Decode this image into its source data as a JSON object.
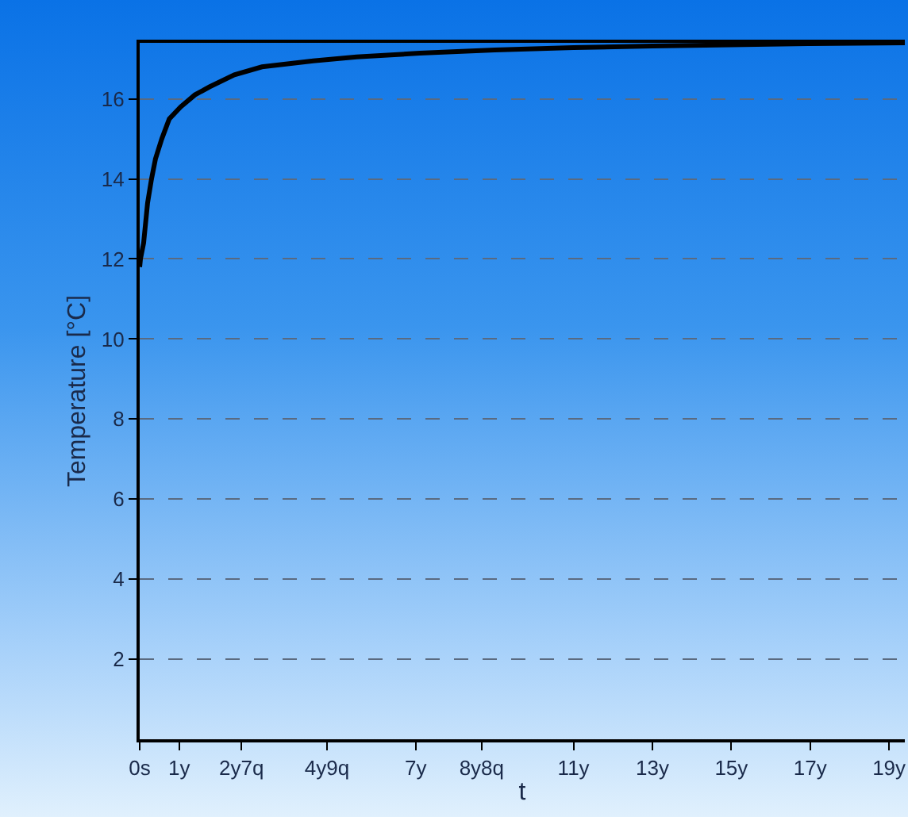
{
  "chart_data": {
    "type": "line",
    "xlabel": "t",
    "ylabel": "Temperature [°C]",
    "x": [
      0,
      0.02,
      0.1,
      0.2,
      0.3,
      0.4,
      0.56,
      0.75,
      1.04,
      1.4,
      1.77,
      2.4,
      3.1,
      4.4,
      5.5,
      7.1,
      9,
      11,
      13,
      15,
      17,
      19.4
    ],
    "series": [
      {
        "color": "#000000",
        "values": [
          11.8,
          12.0,
          12.4,
          13.4,
          14.0,
          14.5,
          15.0,
          15.5,
          15.8,
          16.1,
          16.3,
          16.6,
          16.8,
          16.95,
          17.05,
          17.14,
          17.22,
          17.28,
          17.32,
          17.35,
          17.38,
          17.4
        ]
      }
    ],
    "xlim": [
      0,
      19.4
    ],
    "xticks": [
      {
        "value": 0,
        "label": "0s"
      },
      {
        "value": 1,
        "label": "1y"
      },
      {
        "value": 2.58,
        "label": "2y7q"
      },
      {
        "value": 4.75,
        "label": "4y9q"
      },
      {
        "value": 7,
        "label": "7y"
      },
      {
        "value": 8.67,
        "label": "8y8q"
      },
      {
        "value": 11,
        "label": "11y"
      },
      {
        "value": 13,
        "label": "13y"
      },
      {
        "value": 15,
        "label": "15y"
      },
      {
        "value": 17,
        "label": "17y"
      },
      {
        "value": 19,
        "label": "19y"
      }
    ],
    "ylim": [
      0,
      17.4
    ],
    "yticks": [
      2,
      4,
      6,
      8,
      10,
      12,
      14,
      16
    ],
    "grid": "y",
    "marker": "none",
    "line_style": "solid"
  }
}
